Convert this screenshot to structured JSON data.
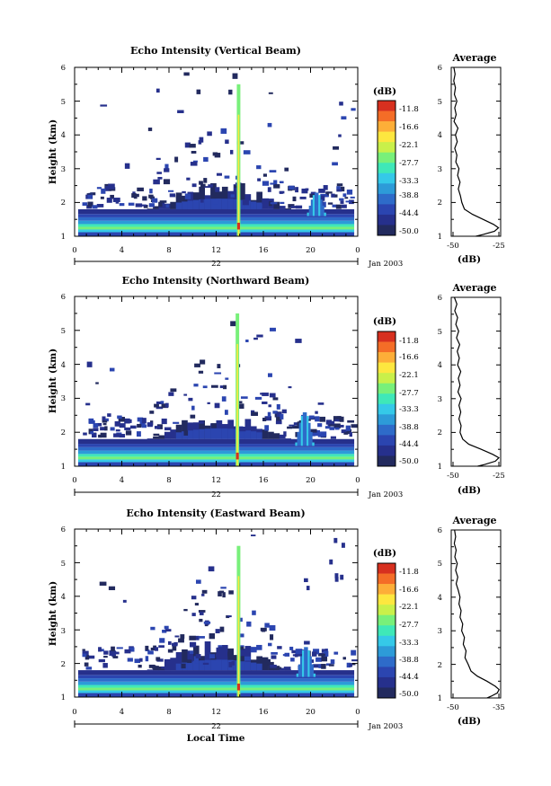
{
  "chart_data": [
    {
      "type": "heatmap",
      "title": "Echo Intensity (Vertical Beam)",
      "ylabel": "Height (km)",
      "xlim": [
        0,
        24
      ],
      "ylim": [
        1,
        6
      ],
      "x_ticks": [
        "0",
        "4",
        "8",
        "12",
        "16",
        "20",
        "0"
      ],
      "y_ticks": [
        "1",
        "2",
        "3",
        "4",
        "5",
        "6"
      ],
      "date_label": "22",
      "date_suffix": "Jan 2003",
      "colorbar": {
        "unit": "(dB)",
        "labels": [
          "-11.8",
          "-16.6",
          "-22.1",
          "-27.7",
          "-33.3",
          "-38.8",
          "-44.4",
          "-50.0"
        ]
      },
      "average": {
        "title": "Average",
        "xlabel": "(dB)",
        "x_ticks": [
          "-50",
          "-25"
        ],
        "y_ticks": [
          "1",
          "2",
          "3",
          "4",
          "5",
          "6"
        ],
        "xlim": [
          -52,
          -24
        ]
      }
    },
    {
      "type": "heatmap",
      "title": "Echo Intensity (Northward Beam)",
      "ylabel": "Height (km)",
      "xlim": [
        0,
        24
      ],
      "ylim": [
        1,
        6
      ],
      "x_ticks": [
        "0",
        "4",
        "8",
        "12",
        "16",
        "20",
        "0"
      ],
      "y_ticks": [
        "1",
        "2",
        "3",
        "4",
        "5",
        "6"
      ],
      "date_label": "22",
      "date_suffix": "Jan 2003",
      "colorbar": {
        "unit": "(dB)",
        "labels": [
          "-11.8",
          "-16.6",
          "-22.1",
          "-27.7",
          "-33.3",
          "-38.8",
          "-44.4",
          "-50.0"
        ]
      },
      "average": {
        "title": "Average",
        "xlabel": "(dB)",
        "x_ticks": [
          "-50",
          "-25"
        ],
        "y_ticks": [
          "1",
          "2",
          "3",
          "4",
          "5",
          "6"
        ],
        "xlim": [
          -52,
          -24
        ]
      }
    },
    {
      "type": "heatmap",
      "title": "Echo Intensity (Eastward Beam)",
      "ylabel": "Height (km)",
      "xlabel": "Local Time",
      "xlim": [
        0,
        24
      ],
      "ylim": [
        1,
        6
      ],
      "x_ticks": [
        "0",
        "4",
        "8",
        "12",
        "16",
        "20",
        "0"
      ],
      "y_ticks": [
        "1",
        "2",
        "3",
        "4",
        "5",
        "6"
      ],
      "date_label": "22",
      "date_suffix": "Jan 2003",
      "colorbar": {
        "unit": "(dB)",
        "labels": [
          "-11.8",
          "-16.6",
          "-22.1",
          "-27.7",
          "-33.3",
          "-38.8",
          "-44.4",
          "-50.0"
        ]
      },
      "average": {
        "title": "Average",
        "xlabel": "(dB)",
        "x_ticks": [
          "-50",
          "-35"
        ],
        "y_ticks": [
          "1",
          "2",
          "3",
          "4",
          "5",
          "6"
        ],
        "xlim": [
          -52,
          -34
        ]
      }
    }
  ],
  "colorscale": [
    "#d7301f",
    "#f46d27",
    "#fdae38",
    "#fde73f",
    "#c9f04a",
    "#78f07a",
    "#3fe8b8",
    "#35c9e8",
    "#2d9bd8",
    "#2e6bc9",
    "#2b45b0",
    "#26308c",
    "#222a5e"
  ],
  "profiles": {
    "vertical": [
      [
        -50.5,
        6.0
      ],
      [
        -49.8,
        5.8
      ],
      [
        -50.6,
        5.6
      ],
      [
        -49.6,
        5.4
      ],
      [
        -50.2,
        5.2
      ],
      [
        -48.8,
        5.0
      ],
      [
        -50.0,
        4.8
      ],
      [
        -49.2,
        4.6
      ],
      [
        -50.4,
        4.4
      ],
      [
        -48.2,
        4.2
      ],
      [
        -49.6,
        4.0
      ],
      [
        -48.6,
        3.8
      ],
      [
        -50.0,
        3.6
      ],
      [
        -48.8,
        3.4
      ],
      [
        -49.4,
        3.2
      ],
      [
        -47.6,
        3.0
      ],
      [
        -48.4,
        2.8
      ],
      [
        -47.0,
        2.6
      ],
      [
        -48.0,
        2.4
      ],
      [
        -46.8,
        2.2
      ],
      [
        -46.0,
        2.0
      ],
      [
        -44.5,
        1.8
      ],
      [
        -40.0,
        1.65
      ],
      [
        -34.0,
        1.5
      ],
      [
        -28.0,
        1.35
      ],
      [
        -25.2,
        1.25
      ],
      [
        -27.5,
        1.15
      ],
      [
        -34.0,
        1.05
      ],
      [
        -38.0,
        1.0
      ]
    ],
    "northward": [
      [
        -50.2,
        6.0
      ],
      [
        -48.8,
        5.8
      ],
      [
        -50.0,
        5.6
      ],
      [
        -48.4,
        5.4
      ],
      [
        -49.4,
        5.2
      ],
      [
        -47.8,
        5.0
      ],
      [
        -49.0,
        4.8
      ],
      [
        -47.2,
        4.6
      ],
      [
        -48.6,
        4.4
      ],
      [
        -47.4,
        4.2
      ],
      [
        -48.4,
        4.0
      ],
      [
        -46.6,
        3.8
      ],
      [
        -48.0,
        3.6
      ],
      [
        -47.0,
        3.4
      ],
      [
        -48.2,
        3.2
      ],
      [
        -46.4,
        3.0
      ],
      [
        -47.6,
        2.8
      ],
      [
        -46.6,
        2.6
      ],
      [
        -47.6,
        2.4
      ],
      [
        -46.4,
        2.2
      ],
      [
        -47.0,
        2.0
      ],
      [
        -45.5,
        1.8
      ],
      [
        -42.0,
        1.65
      ],
      [
        -35.0,
        1.5
      ],
      [
        -28.5,
        1.35
      ],
      [
        -25.0,
        1.25
      ],
      [
        -27.0,
        1.15
      ],
      [
        -33.0,
        1.05
      ],
      [
        -37.0,
        1.0
      ]
    ],
    "eastward": [
      [
        -50.8,
        6.0
      ],
      [
        -50.4,
        5.8
      ],
      [
        -50.9,
        5.6
      ],
      [
        -50.2,
        5.4
      ],
      [
        -50.7,
        5.2
      ],
      [
        -49.8,
        5.0
      ],
      [
        -50.4,
        4.8
      ],
      [
        -49.6,
        4.6
      ],
      [
        -50.2,
        4.4
      ],
      [
        -49.4,
        4.2
      ],
      [
        -48.8,
        4.0
      ],
      [
        -49.2,
        3.8
      ],
      [
        -48.4,
        3.6
      ],
      [
        -48.8,
        3.4
      ],
      [
        -47.8,
        3.2
      ],
      [
        -48.2,
        3.0
      ],
      [
        -47.2,
        2.8
      ],
      [
        -47.6,
        2.6
      ],
      [
        -46.6,
        2.4
      ],
      [
        -47.0,
        2.2
      ],
      [
        -45.8,
        2.0
      ],
      [
        -44.8,
        1.8
      ],
      [
        -42.5,
        1.65
      ],
      [
        -39.0,
        1.5
      ],
      [
        -36.0,
        1.35
      ],
      [
        -34.6,
        1.25
      ],
      [
        -35.2,
        1.15
      ],
      [
        -37.5,
        1.05
      ],
      [
        -39.0,
        1.0
      ]
    ]
  }
}
